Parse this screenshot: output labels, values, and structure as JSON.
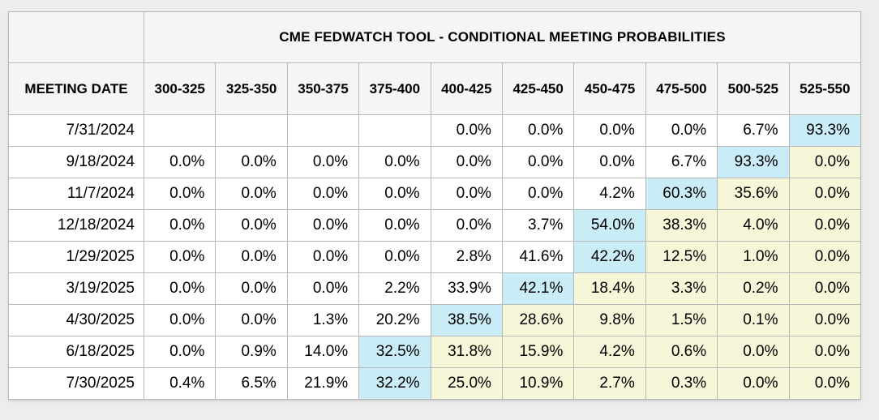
{
  "title": "CME FEDWATCH TOOL - CONDITIONAL MEETING PROBABILITIES",
  "table": {
    "date_header": "MEETING DATE",
    "rate_headers": [
      "300-325",
      "325-350",
      "350-375",
      "375-400",
      "400-425",
      "425-450",
      "450-475",
      "475-500",
      "500-525",
      "525-550"
    ],
    "rows": [
      {
        "date": "7/31/2024",
        "values": [
          "",
          "",
          "",
          "",
          "0.0%",
          "0.0%",
          "0.0%",
          "0.0%",
          "6.7%",
          "93.3%"
        ],
        "styles": [
          "",
          "",
          "",
          "",
          "",
          "",
          "",
          "",
          "",
          "blue"
        ]
      },
      {
        "date": "9/18/2024",
        "values": [
          "0.0%",
          "0.0%",
          "0.0%",
          "0.0%",
          "0.0%",
          "0.0%",
          "0.0%",
          "6.7%",
          "93.3%",
          "0.0%"
        ],
        "styles": [
          "",
          "",
          "",
          "",
          "",
          "",
          "",
          "",
          "blue",
          "yellow"
        ]
      },
      {
        "date": "11/7/2024",
        "values": [
          "0.0%",
          "0.0%",
          "0.0%",
          "0.0%",
          "0.0%",
          "0.0%",
          "4.2%",
          "60.3%",
          "35.6%",
          "0.0%"
        ],
        "styles": [
          "",
          "",
          "",
          "",
          "",
          "",
          "",
          "blue",
          "yellow",
          "yellow"
        ]
      },
      {
        "date": "12/18/2024",
        "values": [
          "0.0%",
          "0.0%",
          "0.0%",
          "0.0%",
          "0.0%",
          "3.7%",
          "54.0%",
          "38.3%",
          "4.0%",
          "0.0%"
        ],
        "styles": [
          "",
          "",
          "",
          "",
          "",
          "",
          "blue",
          "yellow",
          "yellow",
          "yellow"
        ]
      },
      {
        "date": "1/29/2025",
        "values": [
          "0.0%",
          "0.0%",
          "0.0%",
          "0.0%",
          "2.8%",
          "41.6%",
          "42.2%",
          "12.5%",
          "1.0%",
          "0.0%"
        ],
        "styles": [
          "",
          "",
          "",
          "",
          "",
          "",
          "blue",
          "yellow",
          "yellow",
          "yellow"
        ]
      },
      {
        "date": "3/19/2025",
        "values": [
          "0.0%",
          "0.0%",
          "0.0%",
          "2.2%",
          "33.9%",
          "42.1%",
          "18.4%",
          "3.3%",
          "0.2%",
          "0.0%"
        ],
        "styles": [
          "",
          "",
          "",
          "",
          "",
          "blue",
          "yellow",
          "yellow",
          "yellow",
          "yellow"
        ]
      },
      {
        "date": "4/30/2025",
        "values": [
          "0.0%",
          "0.0%",
          "1.3%",
          "20.2%",
          "38.5%",
          "28.6%",
          "9.8%",
          "1.5%",
          "0.1%",
          "0.0%"
        ],
        "styles": [
          "",
          "",
          "",
          "",
          "blue",
          "yellow",
          "yellow",
          "yellow",
          "yellow",
          "yellow"
        ]
      },
      {
        "date": "6/18/2025",
        "values": [
          "0.0%",
          "0.9%",
          "14.0%",
          "32.5%",
          "31.8%",
          "15.9%",
          "4.2%",
          "0.6%",
          "0.0%",
          "0.0%"
        ],
        "styles": [
          "",
          "",
          "",
          "blue",
          "yellow",
          "yellow",
          "yellow",
          "yellow",
          "yellow",
          "yellow"
        ]
      },
      {
        "date": "7/30/2025",
        "values": [
          "0.4%",
          "6.5%",
          "21.9%",
          "32.2%",
          "25.0%",
          "10.9%",
          "2.7%",
          "0.3%",
          "0.0%",
          "0.0%"
        ],
        "styles": [
          "",
          "",
          "",
          "blue",
          "yellow",
          "yellow",
          "yellow",
          "yellow",
          "yellow",
          "yellow"
        ]
      }
    ]
  },
  "colors": {
    "highlight_blue": "#c9ecf7",
    "highlight_yellow": "#f6f6d8",
    "header_bg": "#f5f5f5",
    "border": "#b7b7b7",
    "page_bg": "#ededed"
  },
  "chart_data": {
    "type": "table",
    "title": "CME FEDWATCH TOOL - CONDITIONAL MEETING PROBABILITIES",
    "row_header": "MEETING DATE",
    "columns": [
      "300-325",
      "325-350",
      "350-375",
      "375-400",
      "400-425",
      "425-450",
      "450-475",
      "475-500",
      "500-525",
      "525-550"
    ],
    "unit": "percent",
    "rows": [
      {
        "date": "7/31/2024",
        "values": [
          null,
          null,
          null,
          null,
          0.0,
          0.0,
          0.0,
          0.0,
          6.7,
          93.3
        ]
      },
      {
        "date": "9/18/2024",
        "values": [
          0.0,
          0.0,
          0.0,
          0.0,
          0.0,
          0.0,
          0.0,
          6.7,
          93.3,
          0.0
        ]
      },
      {
        "date": "11/7/2024",
        "values": [
          0.0,
          0.0,
          0.0,
          0.0,
          0.0,
          0.0,
          4.2,
          60.3,
          35.6,
          0.0
        ]
      },
      {
        "date": "12/18/2024",
        "values": [
          0.0,
          0.0,
          0.0,
          0.0,
          0.0,
          3.7,
          54.0,
          38.3,
          4.0,
          0.0
        ]
      },
      {
        "date": "1/29/2025",
        "values": [
          0.0,
          0.0,
          0.0,
          0.0,
          2.8,
          41.6,
          42.2,
          12.5,
          1.0,
          0.0
        ]
      },
      {
        "date": "3/19/2025",
        "values": [
          0.0,
          0.0,
          0.0,
          2.2,
          33.9,
          42.1,
          18.4,
          3.3,
          0.2,
          0.0
        ]
      },
      {
        "date": "4/30/2025",
        "values": [
          0.0,
          0.0,
          1.3,
          20.2,
          38.5,
          28.6,
          9.8,
          1.5,
          0.1,
          0.0
        ]
      },
      {
        "date": "6/18/2025",
        "values": [
          0.0,
          0.9,
          14.0,
          32.5,
          31.8,
          15.9,
          4.2,
          0.6,
          0.0,
          0.0
        ]
      },
      {
        "date": "7/30/2025",
        "values": [
          0.4,
          6.5,
          21.9,
          32.2,
          25.0,
          10.9,
          2.7,
          0.3,
          0.0,
          0.0
        ]
      }
    ],
    "legend": {
      "blue_highlight": "highest probability in row",
      "yellow_highlight": "outcomes above the modal rate path"
    }
  }
}
